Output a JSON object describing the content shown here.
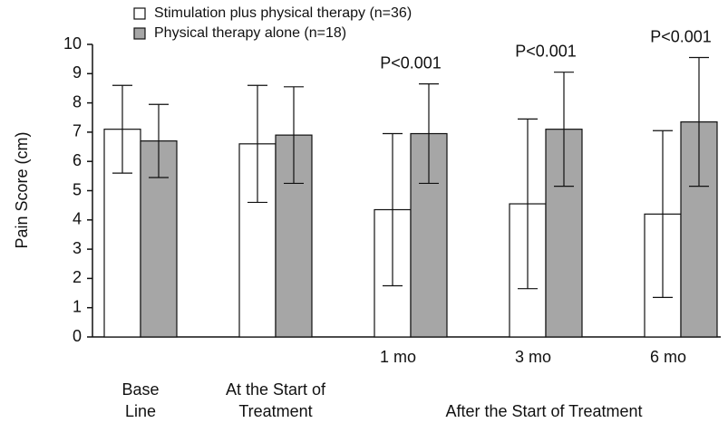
{
  "chart_data": {
    "type": "bar",
    "ylabel": "Pain Score (cm)",
    "categories": [
      "Base Line",
      "At the Start of Treatment",
      "1 mo",
      "3 mo",
      "6 mo"
    ],
    "group_label": "After the Start of Treatment",
    "annotations": [
      null,
      null,
      "P<0.001",
      "P<0.001",
      "P<0.001"
    ],
    "series": [
      {
        "name": "Stimulation plus physical therapy (n=36)",
        "color": "#ffffff",
        "values": [
          7.1,
          6.6,
          4.35,
          4.55,
          4.2
        ],
        "errors": [
          1.5,
          2.0,
          2.6,
          2.9,
          2.85
        ]
      },
      {
        "name": "Physical therapy alone (n=18)",
        "color": "#a6a6a6",
        "values": [
          6.7,
          6.9,
          6.95,
          7.1,
          7.35
        ],
        "errors": [
          1.25,
          1.65,
          1.7,
          1.95,
          2.2
        ]
      }
    ],
    "ylim": [
      0,
      10
    ],
    "yticks": [
      0,
      1,
      2,
      3,
      4,
      5,
      6,
      7,
      8,
      9,
      10
    ]
  }
}
